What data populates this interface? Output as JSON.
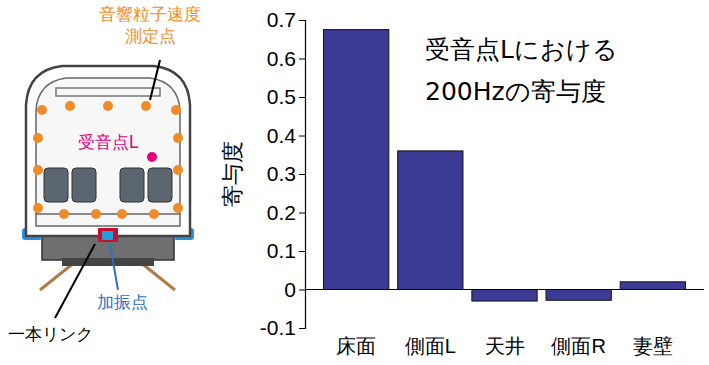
{
  "chart_data": {
    "type": "bar",
    "title": "受音点Lにおける200Hzの寄与度",
    "y_label": "寄与度",
    "categories": [
      "床面",
      "側面L",
      "天井",
      "側面R",
      "妻壁"
    ],
    "values": [
      0.675,
      0.36,
      -0.03,
      -0.028,
      0.02
    ],
    "color": "#3b3b95",
    "ylim": [
      -0.1,
      0.7
    ],
    "yticks": [
      -0.1,
      0,
      0.1,
      0.2,
      0.3,
      0.4,
      0.5,
      0.6,
      0.7
    ],
    "grid": false
  },
  "diagram": {
    "labels": {
      "measurement_points": "音響粒子速度測定点",
      "receiver": "受音点L",
      "excitation": "加振点",
      "link": "一本リンク"
    }
  }
}
